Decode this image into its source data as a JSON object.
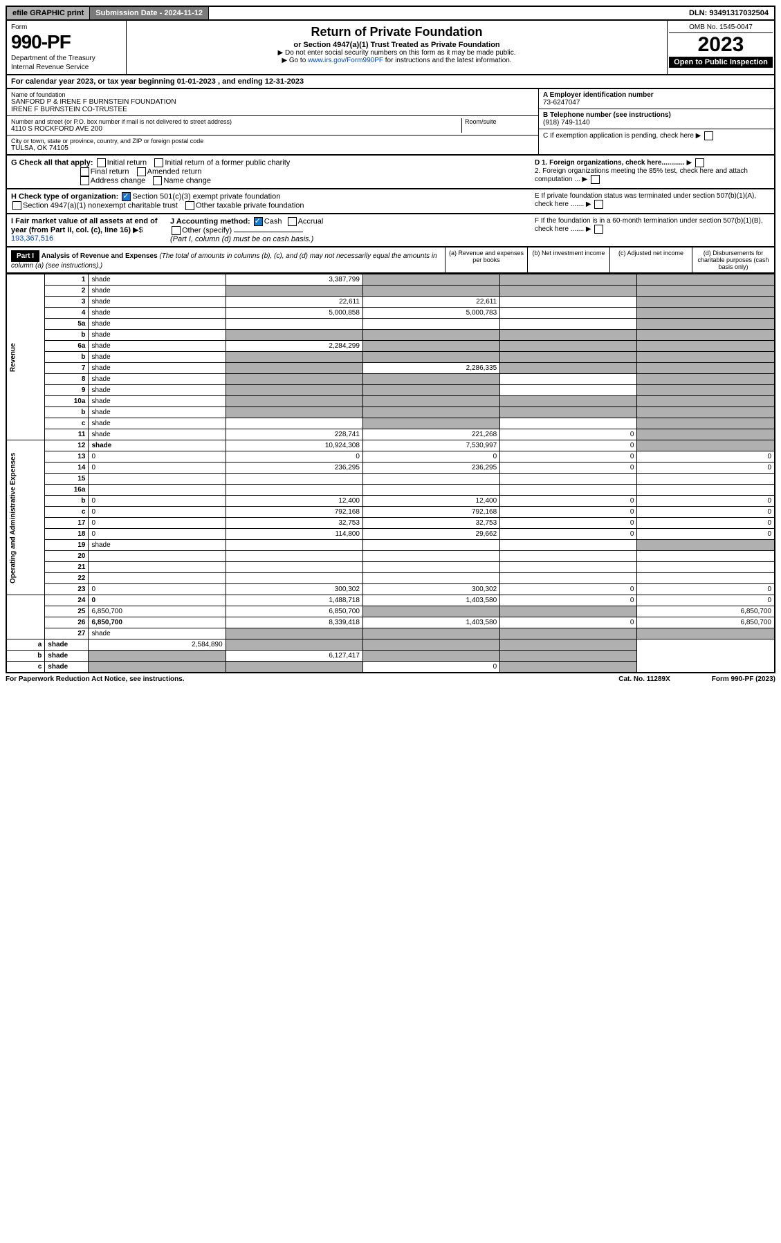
{
  "top": {
    "efile": "efile GRAPHIC print",
    "submission": "Submission Date - 2024-11-12",
    "dln": "DLN: 93491317032504"
  },
  "header": {
    "form_label": "Form",
    "form_number": "990-PF",
    "dept1": "Department of the Treasury",
    "dept2": "Internal Revenue Service",
    "title": "Return of Private Foundation",
    "subtitle": "or Section 4947(a)(1) Trust Treated as Private Foundation",
    "note1": "▶ Do not enter social security numbers on this form as it may be made public.",
    "note2": "▶ Go to www.irs.gov/Form990PF for instructions and the latest information.",
    "link_text": "www.irs.gov/Form990PF",
    "omb": "OMB No. 1545-0047",
    "year": "2023",
    "open": "Open to Public Inspection"
  },
  "cal_year": "For calendar year 2023, or tax year beginning 01-01-2023                              , and ending 12-31-2023",
  "entity": {
    "name_label": "Name of foundation",
    "name1": "SANFORD P & IRENE F BURNSTEIN FOUNDATION",
    "name2": "IRENE F BURNSTEIN CO-TRUSTEE",
    "street_label": "Number and street (or P.O. box number if mail is not delivered to street address)",
    "street": "4110 S ROCKFORD AVE 200",
    "room_label": "Room/suite",
    "city_label": "City or town, state or province, country, and ZIP or foreign postal code",
    "city": "TULSA, OK  74105",
    "ein_label": "A Employer identification number",
    "ein": "73-6247047",
    "phone_label": "B Telephone number (see instructions)",
    "phone": "(918) 749-1140",
    "c_label": "C If exemption application is pending, check here",
    "d1": "D 1. Foreign organizations, check here............",
    "d2": "2. Foreign organizations meeting the 85% test, check here and attach computation ...",
    "e": "E  If private foundation status was terminated under section 507(b)(1)(A), check here .......",
    "f": "F  If the foundation is in a 60-month termination under section 507(b)(1)(B), check here .......",
    "g_label": "G Check all that apply:",
    "g_opts": [
      "Initial return",
      "Initial return of a former public charity",
      "Final return",
      "Amended return",
      "Address change",
      "Name change"
    ],
    "h_label": "H Check type of organization:",
    "h1": "Section 501(c)(3) exempt private foundation",
    "h2": "Section 4947(a)(1) nonexempt charitable trust",
    "h3": "Other taxable private foundation",
    "i_label": "I Fair market value of all assets at end of year (from Part II, col. (c), line 16)",
    "i_val": "193,367,516",
    "j_label": "J Accounting method:",
    "j_cash": "Cash",
    "j_accrual": "Accrual",
    "j_other": "Other (specify)",
    "j_note": "(Part I, column (d) must be on cash basis.)"
  },
  "part1": {
    "label": "Part I",
    "title": "Analysis of Revenue and Expenses",
    "title_note": "(The total of amounts in columns (b), (c), and (d) may not necessarily equal the amounts in column (a) (see instructions).)",
    "col_a": "(a)   Revenue and expenses per books",
    "col_b": "(b)   Net investment income",
    "col_c": "(c)  Adjusted net income",
    "col_d": "(d)  Disbursements for charitable purposes (cash basis only)"
  },
  "sections": {
    "revenue": "Revenue",
    "opex": "Operating and Administrative Expenses"
  },
  "rows": [
    {
      "n": "1",
      "d": "shade",
      "a": "3,387,799",
      "b": "shade",
      "c": "shade"
    },
    {
      "n": "2",
      "d": "shade",
      "a": "shade",
      "b": "shade",
      "c": "shade"
    },
    {
      "n": "3",
      "d": "shade",
      "a": "22,611",
      "b": "22,611",
      "c": ""
    },
    {
      "n": "4",
      "d": "shade",
      "a": "5,000,858",
      "b": "5,000,783",
      "c": ""
    },
    {
      "n": "5a",
      "d": "shade",
      "a": "",
      "b": "",
      "c": ""
    },
    {
      "n": "b",
      "d": "shade",
      "a": "shade",
      "b": "shade",
      "c": "shade"
    },
    {
      "n": "6a",
      "d": "shade",
      "a": "2,284,299",
      "b": "shade",
      "c": "shade"
    },
    {
      "n": "b",
      "d": "shade",
      "a": "shade",
      "b": "shade",
      "c": "shade"
    },
    {
      "n": "7",
      "d": "shade",
      "a": "shade",
      "b": "2,286,335",
      "c": "shade"
    },
    {
      "n": "8",
      "d": "shade",
      "a": "shade",
      "b": "shade",
      "c": ""
    },
    {
      "n": "9",
      "d": "shade",
      "a": "shade",
      "b": "shade",
      "c": ""
    },
    {
      "n": "10a",
      "d": "shade",
      "a": "shade",
      "b": "shade",
      "c": "shade"
    },
    {
      "n": "b",
      "d": "shade",
      "a": "shade",
      "b": "shade",
      "c": "shade"
    },
    {
      "n": "c",
      "d": "shade",
      "a": "",
      "b": "shade",
      "c": ""
    },
    {
      "n": "11",
      "d": "shade",
      "a": "228,741",
      "b": "221,268",
      "c": "0"
    },
    {
      "n": "12",
      "d": "shade",
      "a": "10,924,308",
      "b": "7,530,997",
      "c": "0",
      "bold": true
    },
    {
      "n": "13",
      "d": "0",
      "a": "0",
      "b": "0",
      "c": "0"
    },
    {
      "n": "14",
      "d": "0",
      "a": "236,295",
      "b": "236,295",
      "c": "0"
    },
    {
      "n": "15",
      "d": "",
      "a": "",
      "b": "",
      "c": ""
    },
    {
      "n": "16a",
      "d": "",
      "a": "",
      "b": "",
      "c": ""
    },
    {
      "n": "b",
      "d": "0",
      "a": "12,400",
      "b": "12,400",
      "c": "0"
    },
    {
      "n": "c",
      "d": "0",
      "a": "792,168",
      "b": "792,168",
      "c": "0"
    },
    {
      "n": "17",
      "d": "0",
      "a": "32,753",
      "b": "32,753",
      "c": "0"
    },
    {
      "n": "18",
      "d": "0",
      "a": "114,800",
      "b": "29,662",
      "c": "0"
    },
    {
      "n": "19",
      "d": "shade",
      "a": "",
      "b": "",
      "c": ""
    },
    {
      "n": "20",
      "d": "",
      "a": "",
      "b": "",
      "c": ""
    },
    {
      "n": "21",
      "d": "",
      "a": "",
      "b": "",
      "c": ""
    },
    {
      "n": "22",
      "d": "",
      "a": "",
      "b": "",
      "c": ""
    },
    {
      "n": "23",
      "d": "0",
      "a": "300,302",
      "b": "300,302",
      "c": "0"
    },
    {
      "n": "24",
      "d": "0",
      "a": "1,488,718",
      "b": "1,403,580",
      "c": "0",
      "bold": true
    },
    {
      "n": "25",
      "d": "6,850,700",
      "a": "6,850,700",
      "b": "shade",
      "c": "shade"
    },
    {
      "n": "26",
      "d": "6,850,700",
      "a": "8,339,418",
      "b": "1,403,580",
      "c": "0",
      "bold": true
    },
    {
      "n": "27",
      "d": "shade",
      "a": "shade",
      "b": "shade",
      "c": "shade"
    },
    {
      "n": "a",
      "d": "shade",
      "a": "2,584,890",
      "b": "shade",
      "c": "shade",
      "bold": true
    },
    {
      "n": "b",
      "d": "shade",
      "a": "shade",
      "b": "6,127,417",
      "c": "shade",
      "bold": true
    },
    {
      "n": "c",
      "d": "shade",
      "a": "shade",
      "b": "shade",
      "c": "0",
      "bold": true
    }
  ],
  "footer": {
    "left": "For Paperwork Reduction Act Notice, see instructions.",
    "mid": "Cat. No. 11289X",
    "right": "Form 990-PF (2023)"
  }
}
